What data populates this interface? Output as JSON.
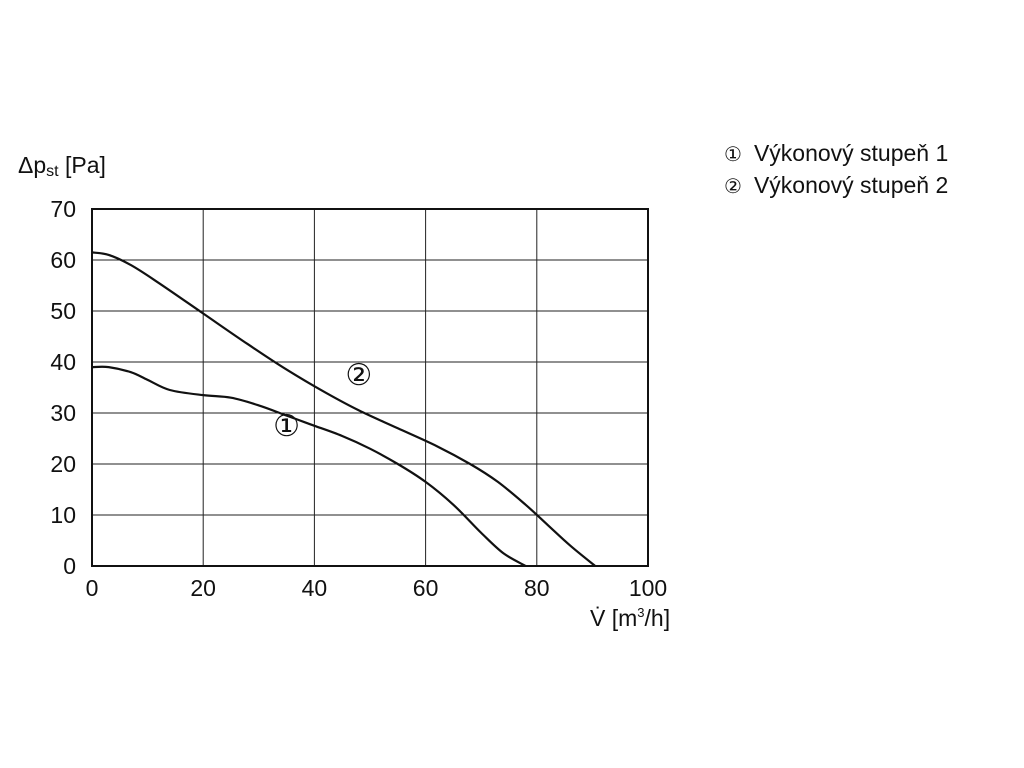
{
  "chart_data": {
    "type": "line",
    "ylabel_main": "Δp",
    "ylabel_sub": "st",
    "ylabel_unit": " [Pa]",
    "xlabel_main": "V̇",
    "xlabel_unit_pre": " [m",
    "xlabel_unit_sup": "3",
    "xlabel_unit_post": "/h]",
    "xlim": [
      0,
      100
    ],
    "ylim": [
      0,
      70
    ],
    "x_ticks": [
      0,
      20,
      40,
      60,
      80,
      100
    ],
    "y_ticks": [
      0,
      10,
      20,
      30,
      40,
      50,
      60,
      70
    ],
    "x_tick_labels": [
      "0",
      "20",
      "40",
      "60",
      "80",
      "100"
    ],
    "y_tick_labels": [
      "0",
      "10",
      "20",
      "30",
      "40",
      "50",
      "60",
      "70"
    ],
    "grid": true,
    "legend": [
      {
        "symbol": "①",
        "label": "Výkonový stupeň 1"
      },
      {
        "symbol": "②",
        "label": "Výkonový stupeň 2"
      }
    ],
    "series": [
      {
        "marker": "①",
        "marker_at": [
          35,
          25.5
        ],
        "points": [
          [
            0,
            39
          ],
          [
            3,
            39
          ],
          [
            7,
            38
          ],
          [
            10,
            36.5
          ],
          [
            14,
            34.5
          ],
          [
            20,
            33.5
          ],
          [
            25,
            33
          ],
          [
            30,
            31.5
          ],
          [
            35,
            29.5
          ],
          [
            40,
            27.5
          ],
          [
            45,
            25.5
          ],
          [
            50,
            23
          ],
          [
            55,
            20
          ],
          [
            60,
            16.5
          ],
          [
            65,
            12
          ],
          [
            70,
            6.5
          ],
          [
            74,
            2.5
          ],
          [
            78,
            0
          ]
        ]
      },
      {
        "marker": "②",
        "marker_at": [
          48,
          35.5
        ],
        "points": [
          [
            0,
            61.5
          ],
          [
            3,
            61
          ],
          [
            7,
            59
          ],
          [
            12,
            55.5
          ],
          [
            20,
            49.5
          ],
          [
            28,
            43.5
          ],
          [
            35,
            38.5
          ],
          [
            42,
            34
          ],
          [
            48,
            30.5
          ],
          [
            55,
            27
          ],
          [
            62,
            23.5
          ],
          [
            68,
            20
          ],
          [
            73,
            16.5
          ],
          [
            78,
            12
          ],
          [
            82,
            8
          ],
          [
            86,
            4
          ],
          [
            90.5,
            0
          ]
        ]
      }
    ]
  }
}
